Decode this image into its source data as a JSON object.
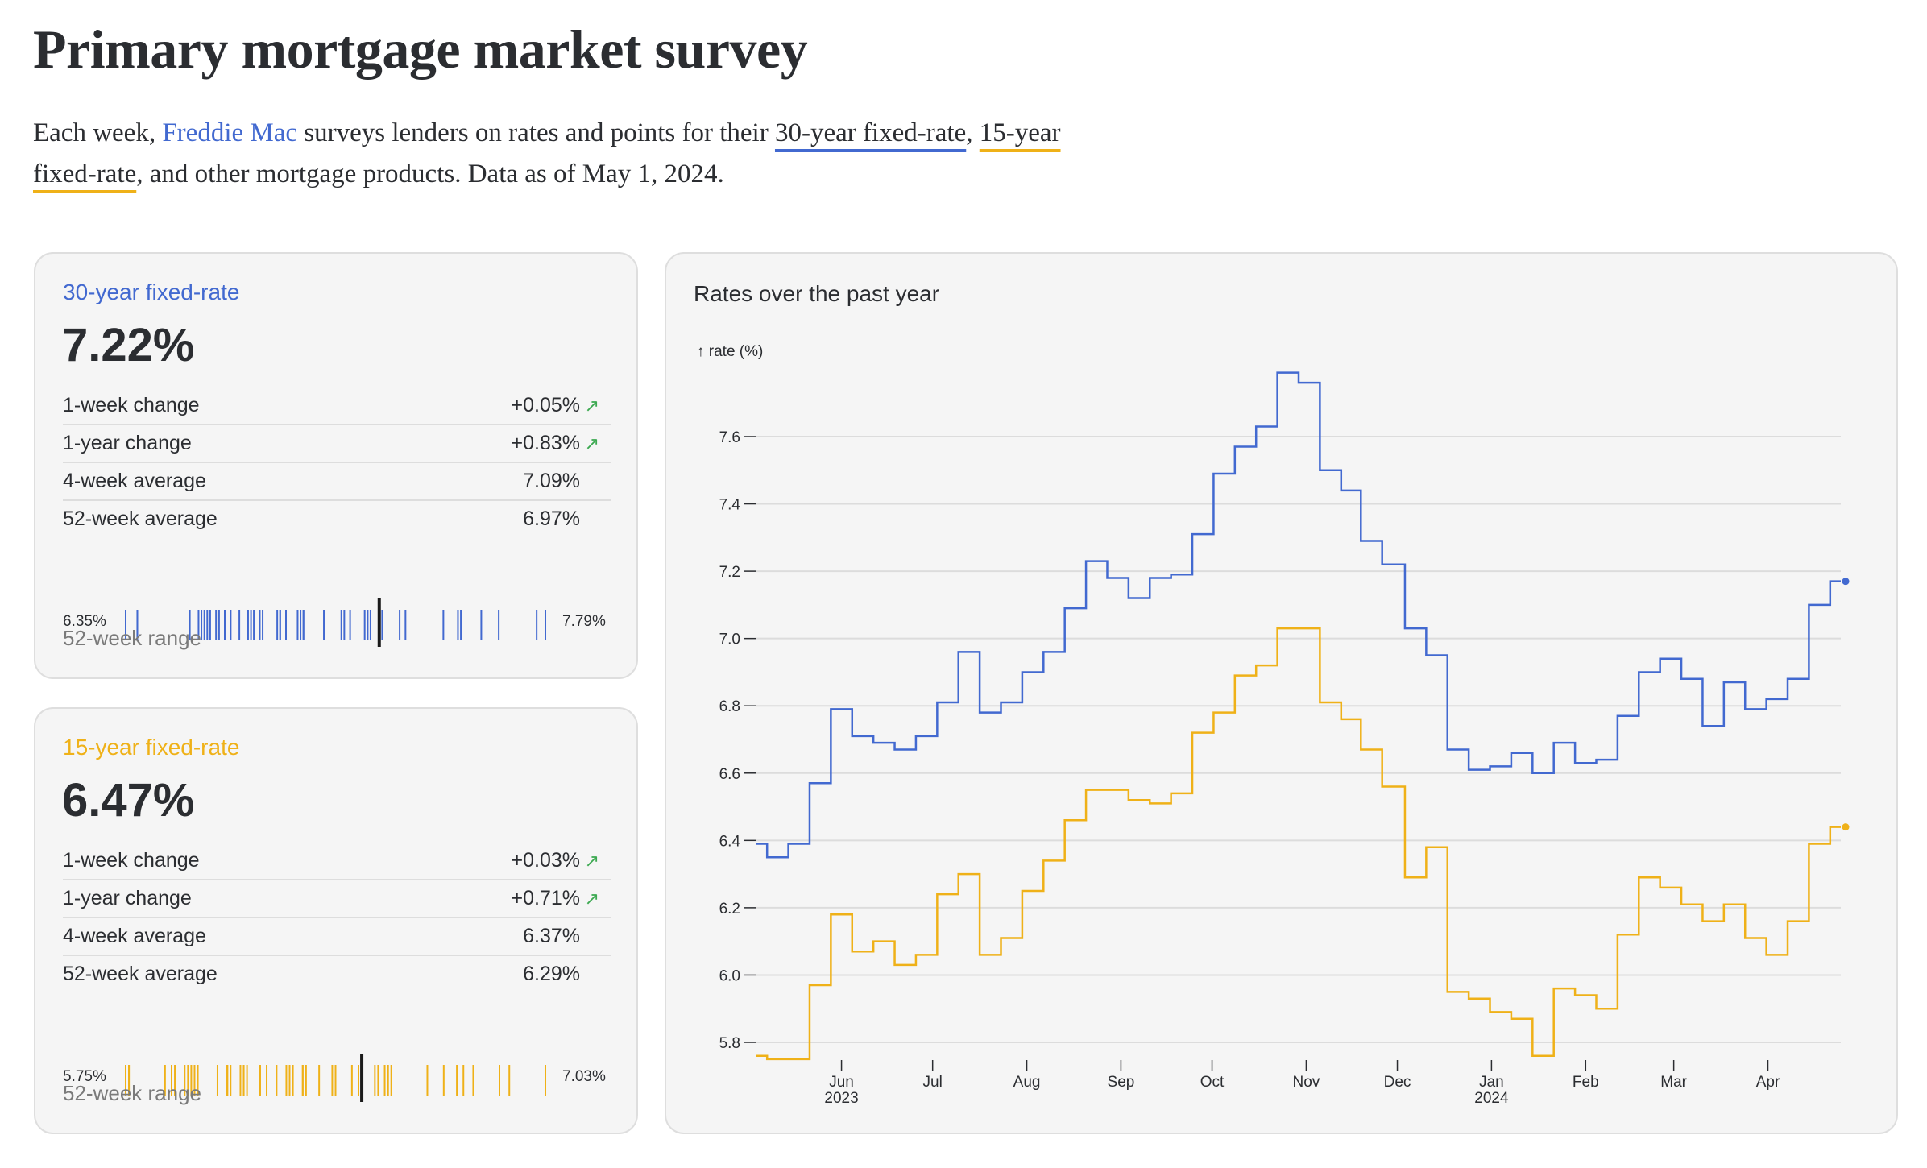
{
  "header": {
    "title": "Primary mortgage market survey",
    "intro_before": "Each week, ",
    "intro_link": "Freddie Mac",
    "intro_mid1": " surveys lenders on rates and points for their ",
    "intro_30": "30-year fixed-rate",
    "intro_mid2": ", ",
    "intro_15": "15-year fixed-rate",
    "intro_after": ", and other mortgage products. Data as of May 1, 2024."
  },
  "colors": {
    "thirty": "#4269d0",
    "fifteen": "#efb118",
    "up": "#3ca951",
    "current_marker": "#1a1a1a"
  },
  "cards": [
    {
      "title": "30-year fixed-rate",
      "rate": "7.22%",
      "current": 7.22,
      "rows": [
        {
          "label": "1-week change",
          "value": "+0.05%",
          "trend": "up-arrow-icon"
        },
        {
          "label": "1-year change",
          "value": "+0.83%",
          "trend": "up-arrow-icon"
        },
        {
          "label": "4-week average",
          "value": "7.09%"
        },
        {
          "label": "52-week average",
          "value": "6.97%"
        }
      ],
      "range_min": "6.35%",
      "range_max": "7.79%",
      "range_label": "52-week range"
    },
    {
      "title": "15-year fixed-rate",
      "rate": "6.47%",
      "current": 6.47,
      "rows": [
        {
          "label": "1-week change",
          "value": "+0.03%",
          "trend": "up-arrow-icon"
        },
        {
          "label": "1-year change",
          "value": "+0.71%",
          "trend": "up-arrow-icon"
        },
        {
          "label": "4-week average",
          "value": "6.37%"
        },
        {
          "label": "52-week average",
          "value": "6.29%"
        }
      ],
      "range_min": "5.75%",
      "range_max": "7.03%",
      "range_label": "52-week range"
    }
  ],
  "chart_data": {
    "type": "line",
    "curve": "step",
    "title": "Rates over the past year",
    "ylabel": "↑ rate (%)",
    "xlabel": "",
    "ylim": [
      5.75,
      7.79
    ],
    "yticks": [
      5.8,
      6.0,
      6.2,
      6.4,
      6.6,
      6.8,
      7.0,
      7.2,
      7.4,
      7.6
    ],
    "xticks": [
      {
        "date": "2023-06-01",
        "label": "Jun",
        "sub": "2023"
      },
      {
        "date": "2023-07-01",
        "label": "Jul"
      },
      {
        "date": "2023-08-01",
        "label": "Aug"
      },
      {
        "date": "2023-09-01",
        "label": "Sep"
      },
      {
        "date": "2023-10-01",
        "label": "Oct"
      },
      {
        "date": "2023-11-01",
        "label": "Nov"
      },
      {
        "date": "2023-12-01",
        "label": "Dec"
      },
      {
        "date": "2024-01-01",
        "label": "Jan",
        "sub": "2024"
      },
      {
        "date": "2024-02-01",
        "label": "Feb"
      },
      {
        "date": "2024-03-01",
        "label": "Mar"
      },
      {
        "date": "2024-04-01",
        "label": "Apr"
      }
    ],
    "grid": true,
    "x": [
      "2023-05-04",
      "2023-05-11",
      "2023-05-18",
      "2023-05-25",
      "2023-06-01",
      "2023-06-08",
      "2023-06-15",
      "2023-06-22",
      "2023-06-29",
      "2023-07-06",
      "2023-07-13",
      "2023-07-20",
      "2023-07-27",
      "2023-08-03",
      "2023-08-10",
      "2023-08-17",
      "2023-08-24",
      "2023-08-31",
      "2023-09-07",
      "2023-09-14",
      "2023-09-21",
      "2023-09-28",
      "2023-10-05",
      "2023-10-12",
      "2023-10-19",
      "2023-10-26",
      "2023-11-02",
      "2023-11-09",
      "2023-11-16",
      "2023-11-22",
      "2023-11-30",
      "2023-12-07",
      "2023-12-14",
      "2023-12-21",
      "2023-12-28",
      "2024-01-04",
      "2024-01-11",
      "2024-01-18",
      "2024-01-25",
      "2024-02-01",
      "2024-02-08",
      "2024-02-15",
      "2024-02-22",
      "2024-02-29",
      "2024-03-07",
      "2024-03-14",
      "2024-03-21",
      "2024-03-28",
      "2024-04-04",
      "2024-04-11",
      "2024-04-18",
      "2024-04-25"
    ],
    "series": [
      {
        "key": "thirty",
        "color": "#4269d0",
        "values": [
          6.39,
          6.35,
          6.39,
          6.57,
          6.79,
          6.71,
          6.69,
          6.67,
          6.71,
          6.81,
          6.96,
          6.78,
          6.81,
          6.9,
          6.96,
          7.09,
          7.23,
          7.18,
          7.12,
          7.18,
          7.19,
          7.31,
          7.49,
          7.57,
          7.63,
          7.79,
          7.76,
          7.5,
          7.44,
          7.29,
          7.22,
          7.03,
          6.95,
          6.67,
          6.61,
          6.62,
          6.66,
          6.6,
          6.69,
          6.63,
          6.64,
          6.77,
          6.9,
          6.94,
          6.88,
          6.74,
          6.87,
          6.79,
          6.82,
          6.88,
          7.1,
          7.17
        ]
      },
      {
        "key": "fifteen",
        "color": "#efb118",
        "values": [
          5.76,
          5.75,
          5.75,
          5.97,
          6.18,
          6.07,
          6.1,
          6.03,
          6.06,
          6.24,
          6.3,
          6.06,
          6.11,
          6.25,
          6.34,
          6.46,
          6.55,
          6.55,
          6.52,
          6.51,
          6.54,
          6.72,
          6.78,
          6.89,
          6.92,
          7.03,
          7.03,
          6.81,
          6.76,
          6.67,
          6.56,
          6.29,
          6.38,
          5.95,
          5.93,
          5.89,
          5.87,
          5.76,
          5.96,
          5.94,
          5.9,
          6.12,
          6.29,
          6.26,
          6.21,
          6.16,
          6.21,
          6.11,
          6.06,
          6.16,
          6.39,
          6.44
        ]
      }
    ]
  }
}
